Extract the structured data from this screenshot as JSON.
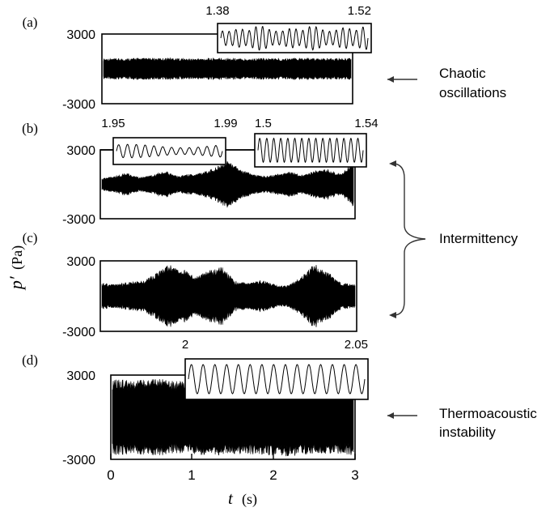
{
  "chart_data": {
    "type": "line",
    "x_axis": {
      "label_var": "t",
      "label_unit": "(s)",
      "ticks": [
        "0",
        "1",
        "2",
        "3"
      ],
      "xlim": [
        0,
        3
      ]
    },
    "y_axis": {
      "label_var": "p′",
      "label_unit": "(Pa)",
      "ticks": [
        "3000",
        "-3000"
      ],
      "ylim": [
        -3000,
        3000
      ]
    },
    "panels": [
      {
        "id": "(a)",
        "envelope": [
          900,
          880,
          940,
          900,
          960,
          880,
          900,
          940,
          900,
          880,
          920,
          900,
          950,
          880,
          900,
          930
        ],
        "insets": [
          {
            "t_start": "1.38",
            "t_end": "1.52",
            "cycles": 22,
            "amplitude": "irregular"
          }
        ],
        "annotation": [
          "Chaotic",
          "oscillations"
        ]
      },
      {
        "id": "(b)",
        "envelope": [
          500,
          700,
          1000,
          600,
          800,
          1200,
          700,
          900,
          1000,
          1500,
          2100,
          1300,
          900,
          700,
          900,
          1100,
          800,
          1200,
          1300,
          900,
          2100
        ],
        "insets": [
          {
            "t_start": "1.95",
            "t_end": "1.99",
            "cycles": 12,
            "amplitude": "modulated"
          },
          {
            "t_start": "1.5",
            "t_end": "1.54",
            "cycles": 15,
            "amplitude": "regular"
          }
        ],
        "annotation": [
          "Intermittency"
        ]
      },
      {
        "id": "(c)",
        "envelope": [
          1100,
          1000,
          1200,
          1300,
          1900,
          2700,
          2400,
          1600,
          2200,
          2500,
          1300,
          1100,
          1400,
          1000,
          900,
          1700,
          2800,
          2000,
          1100,
          1000
        ],
        "insets": []
      },
      {
        "id": "(d)",
        "envelope": [
          2700,
          2600,
          2800,
          2600,
          2700,
          2750,
          2600,
          2700,
          2800,
          2650,
          2600,
          2700
        ],
        "insets": [
          {
            "t_start": "2",
            "t_end": "2.05",
            "cycles": 15,
            "amplitude": "regular"
          }
        ],
        "annotation": [
          "Thermoacoustic",
          "instability"
        ]
      }
    ]
  }
}
